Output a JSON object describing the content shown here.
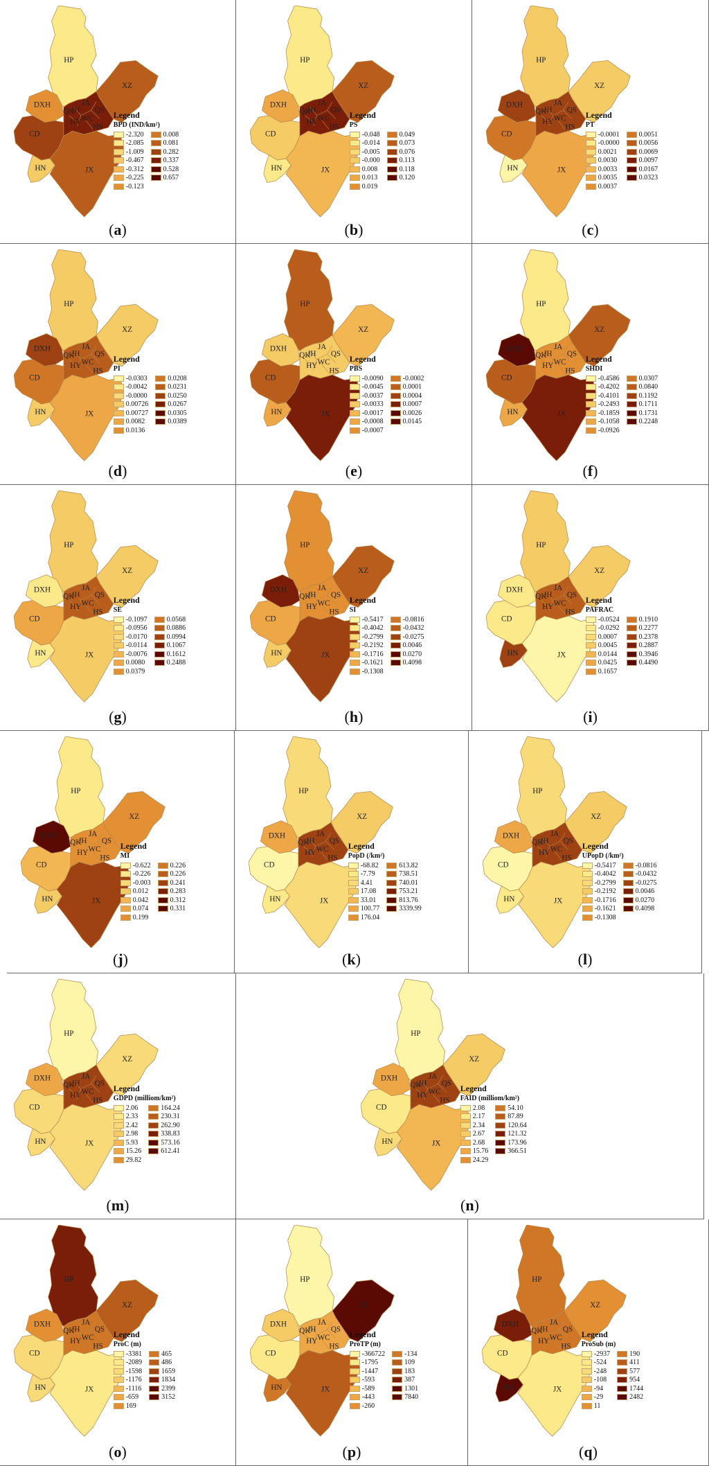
{
  "palette": [
    "#fdf6a9",
    "#fbe98a",
    "#f8db78",
    "#f5cb66",
    "#f2b652",
    "#eea746",
    "#e39034",
    "#cf7727",
    "#b95d1c",
    "#9e4213",
    "#7a1d09",
    "#5a0a03"
  ],
  "districts": {
    "hp": "HP",
    "xz": "XZ",
    "dxh": "DXH",
    "cd": "CD",
    "hn": "HN",
    "jx": "JX",
    "hy": "HY",
    "hs": "HS",
    "wc": "WC",
    "qs": "QS",
    "qk": "QK",
    "jh": "JH",
    "ja": "JA"
  },
  "panels": [
    {
      "id": "a",
      "caption_letter": "a",
      "legend_title": "Legend",
      "variable": "BPD (IND/km²)",
      "left": [
        "-2.320",
        "-2.085",
        "-1.009",
        "-0.467",
        "-0.312",
        "-0.225",
        "-0.123"
      ],
      "right": [
        "0.008",
        "0.081",
        "0.282",
        "0.337",
        "0.528",
        "0.657"
      ],
      "colors": {
        "hp": 1,
        "xz": 8,
        "dxh": 6,
        "cd": 9,
        "hn": 3,
        "jx": 8,
        "core": 10
      }
    },
    {
      "id": "b",
      "caption_letter": "b",
      "legend_title": "Legend",
      "variable": "PS",
      "left": [
        "-0.048",
        "-0.014",
        "-0.005",
        "-0.000",
        "0.008",
        "0.013",
        "0.019"
      ],
      "right": [
        "0.049",
        "0.073",
        "0.076",
        "0.113",
        "0.118",
        "0.120"
      ],
      "colors": {
        "hp": 1,
        "xz": 8,
        "dxh": 5,
        "cd": 3,
        "hn": 1,
        "jx": 4,
        "core": 10
      }
    },
    {
      "id": "c",
      "caption_letter": "c",
      "legend_title": "Legend",
      "variable": "PT",
      "left": [
        "-0.0001",
        "-0.0000",
        "0.0021",
        "0.0030",
        "0.0033",
        "0.0035",
        "0.0037"
      ],
      "right": [
        "0.0051",
        "0.0056",
        "0.0069",
        "0.0097",
        "0.0167",
        "0.0323"
      ],
      "colors": {
        "hp": 3,
        "xz": 3,
        "dxh": 9,
        "cd": 7,
        "hn": 0,
        "jx": 5,
        "core": 9
      }
    },
    {
      "id": "d",
      "caption_letter": "d",
      "legend_title": "Legend",
      "variable": "PI",
      "left": [
        "-0.0303",
        "-0.0042",
        "-0.0000",
        "0.00726",
        "0.00727",
        "0.0082",
        "0.0136"
      ],
      "right": [
        "0.0208",
        "0.0231",
        "0.0250",
        "0.0267",
        "0.0305",
        "0.0389"
      ],
      "colors": {
        "hp": 3,
        "xz": 3,
        "dxh": 9,
        "cd": 7,
        "hn": 3,
        "jx": 5,
        "core": 8
      }
    },
    {
      "id": "e",
      "caption_letter": "e",
      "legend_title": "Legend",
      "variable": "PBS",
      "left": [
        "-0.0090",
        "-0.0045",
        "-0.0037",
        "-0.0033",
        "-0.0017",
        "-0.0008",
        "-0.0007"
      ],
      "right": [
        "-0.0002",
        "0.0001",
        "0.0004",
        "0.0007",
        "0.0026",
        "0.0145"
      ],
      "colors": {
        "hp": 8,
        "xz": 4,
        "dxh": 3,
        "cd": 8,
        "hn": 5,
        "jx": 10,
        "core": 3
      }
    },
    {
      "id": "f",
      "caption_letter": "f",
      "legend_title": "Legend",
      "variable": "SHDI",
      "left": [
        "-0.4586",
        "-0.4202",
        "-0.4101",
        "-0.2493",
        "-0.1859",
        "-0.1058",
        "-0.0926"
      ],
      "right": [
        "0.0307",
        "0.0840",
        "0.1192",
        "0.1711",
        "0.1731",
        "0.2248"
      ],
      "colors": {
        "hp": 1,
        "xz": 8,
        "dxh": 11,
        "cd": 8,
        "hn": 5,
        "jx": 10,
        "core": 6
      }
    },
    {
      "id": "g",
      "caption_letter": "g",
      "legend_title": "Legend",
      "variable": "SE",
      "left": [
        "-0.1097",
        "-0.0956",
        "-0.0170",
        "-0.0114",
        "-0.0076",
        "0.0080",
        "0.0379"
      ],
      "right": [
        "0.0568",
        "0.0886",
        "0.0994",
        "0.1067",
        "0.1612",
        "0.2488"
      ],
      "colors": {
        "hp": 3,
        "xz": 3,
        "dxh": 1,
        "cd": 5,
        "hn": 1,
        "jx": 3,
        "core": 8
      }
    },
    {
      "id": "h",
      "caption_letter": "h",
      "legend_title": "Legend",
      "variable": "SI",
      "left": [
        "-0.5417",
        "-0.4042",
        "-0.2799",
        "-0.2192",
        "-0.1716",
        "-0.1621",
        "-0.1308"
      ],
      "right": [
        "-0.0816",
        "-0.0432",
        "-0.0275",
        "0.0046",
        "0.0270",
        "0.4098"
      ],
      "colors": {
        "hp": 6,
        "xz": 8,
        "dxh": 10,
        "cd": 5,
        "hn": 3,
        "jx": 9,
        "core": 6
      }
    },
    {
      "id": "i",
      "caption_letter": "i",
      "legend_title": "Legend",
      "variable": "PAFRAC",
      "left": [
        "-0.0524",
        "-0.0292",
        "0.0007",
        "0.0045",
        "0.0144",
        "0.0425",
        "0.1657"
      ],
      "right": [
        "0.1910",
        "0.2277",
        "0.2378",
        "0.2887",
        "0.3946",
        "0.4490"
      ],
      "colors": {
        "hp": 3,
        "xz": 3,
        "dxh": 1,
        "cd": 1,
        "hn": 9,
        "jx": 0,
        "core": 8
      }
    },
    {
      "id": "j",
      "caption_letter": "j",
      "legend_title": "Legend",
      "variable": "MI",
      "left": [
        "-0.622",
        "-0.226",
        "-0.003",
        "0.012",
        "0.042",
        "0.074",
        "0.199"
      ],
      "right": [
        "0.226",
        "0.226",
        "0.241",
        "0.283",
        "0.312",
        "0.331"
      ],
      "colors": {
        "hp": 1,
        "xz": 6,
        "dxh": 11,
        "cd": 4,
        "hn": 3,
        "jx": 9,
        "core": 6
      }
    },
    {
      "id": "k",
      "caption_letter": "k",
      "legend_title": "Legend",
      "variable": "PopD (/km²)",
      "left": [
        "-68.82",
        "-7.79",
        "4.41",
        "17.08",
        "33.01",
        "100.77",
        "176.04"
      ],
      "right": [
        "613.82",
        "738.51",
        "740.01",
        "753.21",
        "813.76",
        "3339.99"
      ],
      "colors": {
        "hp": 2,
        "xz": 3,
        "dxh": 5,
        "cd": 0,
        "hn": 1,
        "jx": 2,
        "core": 9
      }
    },
    {
      "id": "l",
      "caption_letter": "l",
      "legend_title": "Legend",
      "variable": "UPopD (/km²)",
      "left": [
        "-0.5417",
        "-0.4042",
        "-0.2799",
        "-0.2192",
        "-0.1716",
        "-0.1621",
        "-0.1308"
      ],
      "right": [
        "-0.0816",
        "-0.0432",
        "-0.0275",
        "0.0046",
        "0.0270",
        "0.4098"
      ],
      "colors": {
        "hp": 2,
        "xz": 3,
        "dxh": 5,
        "cd": 0,
        "hn": 1,
        "jx": 2,
        "core": 9
      }
    },
    {
      "id": "m",
      "caption_letter": "m",
      "legend_title": "Legend",
      "variable": "GDPD (milliom/km²)",
      "left": [
        "2.06",
        "2.33",
        "2.42",
        "2.98",
        "5.93",
        "15.26",
        "29.82"
      ],
      "right": [
        "164.24",
        "230.31",
        "262.90",
        "338.83",
        "573.16",
        "612.41"
      ],
      "colors": {
        "hp": 0,
        "xz": 2,
        "dxh": 5,
        "cd": 2,
        "hn": 2,
        "jx": 2,
        "core": 9
      }
    },
    {
      "id": "n",
      "caption_letter": "n",
      "legend_title": "Legend",
      "variable": "FAID (milliom/km²)",
      "left": [
        "2.08",
        "2.17",
        "2.34",
        "2.67",
        "2.68",
        "15.76",
        "24.29"
      ],
      "right": [
        "54.10",
        "87.89",
        "120.64",
        "121.32",
        "173.96",
        "366.51"
      ],
      "colors": {
        "hp": 0,
        "xz": 3,
        "dxh": 5,
        "cd": 1,
        "hn": 2,
        "jx": 4,
        "core": 9
      }
    },
    {
      "id": "o",
      "caption_letter": "o",
      "legend_title": "Legend",
      "variable": "ProC (m)",
      "left": [
        "-3381",
        "-2089",
        "-1598",
        "-1176",
        "-1116",
        "-659",
        "169"
      ],
      "right": [
        "465",
        "486",
        "1659",
        "1834",
        "2399",
        "3152"
      ],
      "colors": {
        "hp": 10,
        "xz": 8,
        "dxh": 6,
        "cd": 2,
        "hn": 2,
        "jx": 1,
        "core": 7
      }
    },
    {
      "id": "p",
      "caption_letter": "p",
      "legend_title": "Legend",
      "variable": "ProTP (m)",
      "left": [
        "-366722",
        "-1795",
        "-1447",
        "-593",
        "-589",
        "-443",
        "-260"
      ],
      "right": [
        "-134",
        "109",
        "183",
        "387",
        "1301",
        "7840"
      ],
      "colors": {
        "hp": 0,
        "xz": 11,
        "dxh": 3,
        "cd": 1,
        "hn": 7,
        "jx": 8,
        "core": 5
      }
    },
    {
      "id": "q",
      "caption_letter": "q",
      "legend_title": "Legend",
      "variable": "ProSub (m)",
      "left": [
        "-2937",
        "-524",
        "-248",
        "-108",
        "-94",
        "-29",
        "11"
      ],
      "right": [
        "190",
        "411",
        "577",
        "954",
        "1744",
        "2482"
      ],
      "colors": {
        "hp": 7,
        "xz": 6,
        "dxh": 10,
        "cd": 1,
        "hn": 11,
        "jx": 1,
        "core": 7
      }
    }
  ]
}
